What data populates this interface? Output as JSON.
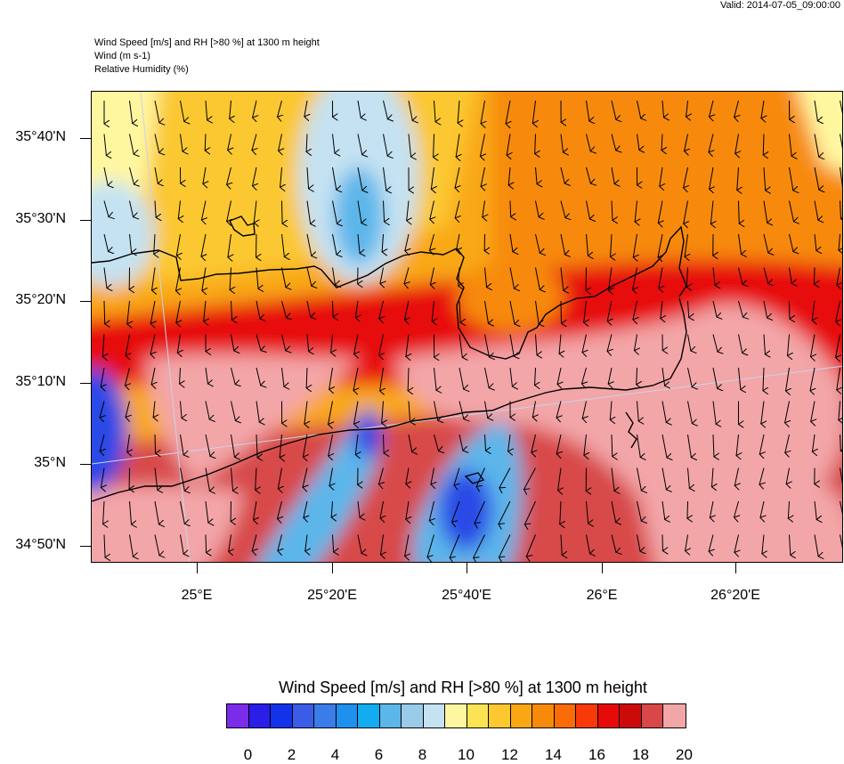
{
  "valid": "Valid: 2014-07-05_09:00:00",
  "titles": {
    "line1": "Wind Speed [m/s] and RH [>80 %] at 1300 m height",
    "line2": "Wind   (m s-1)",
    "line3": "Relative Humidity   (%)"
  },
  "y_labels": [
    "35°40'N",
    "35°30'N",
    "35°20'N",
    "35°10'N",
    "35°N",
    "34°50'N"
  ],
  "x_labels": [
    "25°E",
    "25°20'E",
    "25°40'E",
    "26°E",
    "26°20'E"
  ],
  "colorbar": {
    "title": "Wind Speed [m/s] and RH [>80 %] at 1300 m height",
    "labels": [
      "0",
      "2",
      "4",
      "6",
      "8",
      "10",
      "12",
      "14",
      "16",
      "18",
      "20"
    ],
    "colors": [
      "#7b2ce8",
      "#2a1ee8",
      "#1432ea",
      "#3a5ce6",
      "#3a7ce8",
      "#1e90ee",
      "#12acf0",
      "#5cb6ea",
      "#9acbe8",
      "#c4e2f2",
      "#fff7a0",
      "#fbe454",
      "#fbc830",
      "#f9a814",
      "#f78a08",
      "#f96c08",
      "#f73a08",
      "#e70a0a",
      "#cd0a0a",
      "#d84848",
      "#f3a6a8"
    ]
  },
  "map_colors": {
    "light_blue": "#c4e2f2",
    "mid_blue": "#9acbe8",
    "blue": "#5cb6ea",
    "deep_blue": "#2a4ae6",
    "yellow": "#fff7a0",
    "gold": "#fbc830",
    "orange": "#f9a814",
    "dark_orange": "#f78a08",
    "red": "#e70a0a",
    "crimson": "#d84848",
    "pink": "#f3a6a8"
  }
}
